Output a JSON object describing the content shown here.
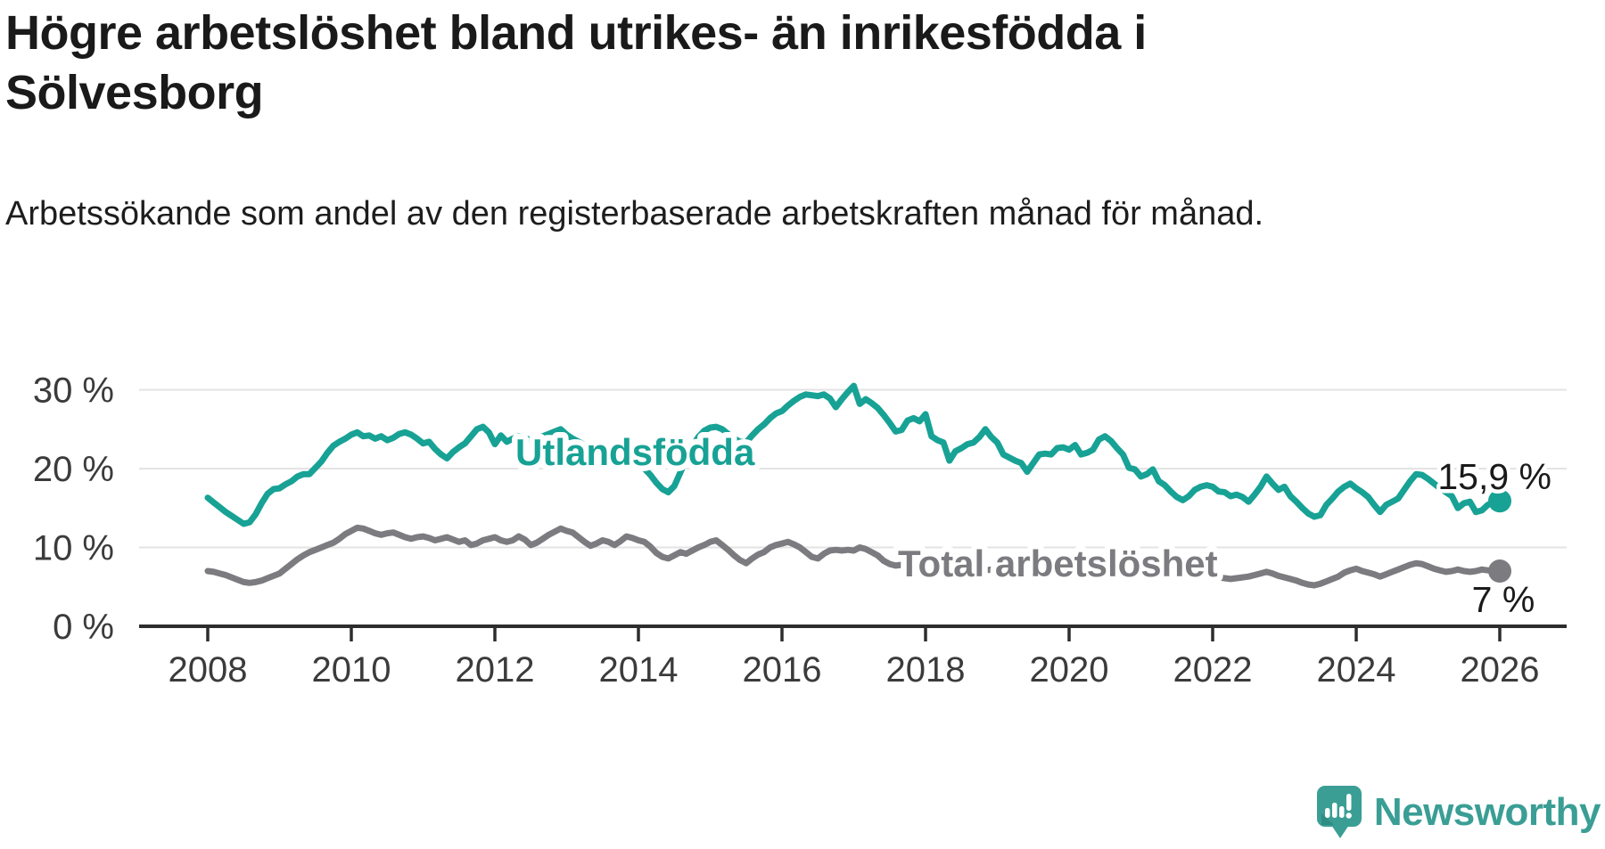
{
  "header": {
    "title": "Högre arbetslöshet bland utrikes- än inrikesfödda i Sölvesborg",
    "subtitle": "Arbetssökande som andel av den registerbaserade arbetskraften månad för månad."
  },
  "chart_data": {
    "type": "line",
    "title": "Högre arbetslöshet bland utrikes- än inrikesfödda i Sölvesborg",
    "subtitle": "Arbetssökande som andel av den registerbaserade arbetskraften månad för månad.",
    "unit": "%",
    "frequency": "monthly",
    "x_start": "2008-01",
    "x_end": "2026-01",
    "xlim": [
      2007.0,
      2026.95
    ],
    "ylim": [
      0,
      33
    ],
    "grid": "horizontal-only",
    "legend_position": "inline-labels-on-lines",
    "x_tick_labels": [
      "2008",
      "2010",
      "2012",
      "2014",
      "2016",
      "2018",
      "2020",
      "2022",
      "2024",
      "2026"
    ],
    "x_tick_years": [
      2008,
      2010,
      2012,
      2014,
      2016,
      2018,
      2020,
      2022,
      2024,
      2026
    ],
    "y_ticks": [
      {
        "value": 30,
        "label": "30 %",
        "gridline": true
      },
      {
        "value": 20,
        "label": "20 %",
        "gridline": true
      },
      {
        "value": 10,
        "label": "10 %",
        "gridline": true
      },
      {
        "value": 0,
        "label": "0 %",
        "gridline": false
      }
    ],
    "series": [
      {
        "name": "Utlandsfödda",
        "color": "#17A295",
        "end_value": 15.9,
        "end_label": "15,9 %",
        "values": [
          16.3,
          15.7,
          15.1,
          14.5,
          14.0,
          13.5,
          13.0,
          13.2,
          14.2,
          15.6,
          16.8,
          17.4,
          17.5,
          18.0,
          18.4,
          19.0,
          19.3,
          19.3,
          20.1,
          20.9,
          22.0,
          22.9,
          23.4,
          23.8,
          24.3,
          24.6,
          24.1,
          24.2,
          23.8,
          24.1,
          23.6,
          23.9,
          24.4,
          24.6,
          24.3,
          23.8,
          23.2,
          23.4,
          22.5,
          21.8,
          21.3,
          22.1,
          22.7,
          23.2,
          24.1,
          25.0,
          25.3,
          24.6,
          23.1,
          24.2,
          23.4,
          23.8,
          24.1,
          23.9,
          23.6,
          23.8,
          24.1,
          24.4,
          24.7,
          25.0,
          24.3,
          23.8,
          23.4,
          23.0,
          22.7,
          22.5,
          22.2,
          22.0,
          21.8,
          21.5,
          21.2,
          21.0,
          20.6,
          20.0,
          19.2,
          18.2,
          17.4,
          17.0,
          17.8,
          19.5,
          21.3,
          22.8,
          24.0,
          24.8,
          25.2,
          25.3,
          25.0,
          24.4,
          23.8,
          23.4,
          23.3,
          24.2,
          25.0,
          25.6,
          26.4,
          27.0,
          27.3,
          28.0,
          28.6,
          29.1,
          29.4,
          29.3,
          29.2,
          29.4,
          28.9,
          27.8,
          28.8,
          29.7,
          30.5,
          28.2,
          28.8,
          28.3,
          27.7,
          26.8,
          25.8,
          24.7,
          24.9,
          26.1,
          26.4,
          26.0,
          26.9,
          24.1,
          23.6,
          23.3,
          21.0,
          22.2,
          22.6,
          23.1,
          23.3,
          24.0,
          25.0,
          24.0,
          23.3,
          21.8,
          21.4,
          21.0,
          20.7,
          19.6,
          20.7,
          21.8,
          21.9,
          21.8,
          22.6,
          22.7,
          22.4,
          23.0,
          21.8,
          22.0,
          22.4,
          23.7,
          24.1,
          23.5,
          22.6,
          21.8,
          20.1,
          19.9,
          19.0,
          19.3,
          19.9,
          18.4,
          17.9,
          17.1,
          16.4,
          16.0,
          16.5,
          17.3,
          17.7,
          17.9,
          17.7,
          17.1,
          17.0,
          16.5,
          16.7,
          16.4,
          15.8,
          16.7,
          17.7,
          19.0,
          18.1,
          17.3,
          17.7,
          16.5,
          15.8,
          15.0,
          14.3,
          13.9,
          14.1,
          15.4,
          16.2,
          17.1,
          17.7,
          18.1,
          17.5,
          17.0,
          16.4,
          15.4,
          14.5,
          15.4,
          15.8,
          16.2,
          17.3,
          18.4,
          19.3,
          19.2,
          18.7,
          18.1,
          17.5,
          17.0,
          16.5,
          15.0,
          15.6,
          15.8,
          14.5,
          14.7,
          15.4,
          15.7,
          15.9
        ]
      },
      {
        "name": "Total arbetslöshet",
        "color": "#7B7B80",
        "end_value": 7.0,
        "end_label": "7 %",
        "values": [
          7.0,
          6.9,
          6.7,
          6.5,
          6.2,
          5.9,
          5.6,
          5.5,
          5.6,
          5.8,
          6.1,
          6.4,
          6.7,
          7.3,
          7.9,
          8.5,
          9.0,
          9.4,
          9.7,
          10.0,
          10.3,
          10.6,
          11.1,
          11.7,
          12.1,
          12.5,
          12.4,
          12.1,
          11.8,
          11.6,
          11.8,
          11.9,
          11.6,
          11.3,
          11.1,
          11.3,
          11.4,
          11.2,
          10.9,
          11.1,
          11.3,
          11.0,
          10.7,
          10.9,
          10.3,
          10.5,
          10.9,
          11.1,
          11.3,
          10.9,
          10.7,
          10.9,
          11.4,
          11.0,
          10.3,
          10.6,
          11.1,
          11.6,
          12.0,
          12.4,
          12.1,
          11.9,
          11.3,
          10.7,
          10.2,
          10.5,
          10.9,
          10.7,
          10.3,
          10.8,
          11.4,
          11.2,
          10.9,
          10.7,
          10.1,
          9.3,
          8.8,
          8.6,
          9.0,
          9.4,
          9.2,
          9.6,
          10.0,
          10.3,
          10.7,
          10.9,
          10.3,
          9.7,
          9.0,
          8.4,
          8.0,
          8.6,
          9.1,
          9.4,
          10.0,
          10.3,
          10.5,
          10.7,
          10.4,
          10.0,
          9.4,
          8.8,
          8.6,
          9.2,
          9.6,
          9.7,
          9.6,
          9.7,
          9.6,
          10.0,
          9.8,
          9.4,
          9.0,
          8.3,
          7.9,
          7.7,
          7.8,
          8.0,
          8.1,
          8.0,
          7.9,
          7.7,
          7.4,
          7.1,
          6.9,
          6.7,
          6.6,
          6.8,
          6.9,
          7.0,
          7.1,
          7.2,
          7.1,
          7.0,
          6.9,
          6.8,
          6.7,
          6.6,
          6.7,
          6.8,
          6.9,
          7.0,
          7.1,
          7.2,
          7.3,
          7.4,
          7.8,
          8.6,
          8.9,
          9.0,
          8.8,
          8.6,
          8.4,
          8.2,
          8.0,
          7.9,
          7.8,
          7.6,
          7.4,
          7.1,
          6.8,
          6.6,
          6.5,
          6.4,
          6.4,
          6.5,
          6.5,
          6.4,
          6.3,
          6.2,
          6.1,
          6.0,
          6.1,
          6.2,
          6.3,
          6.5,
          6.7,
          6.9,
          6.7,
          6.4,
          6.2,
          6.0,
          5.8,
          5.5,
          5.3,
          5.2,
          5.4,
          5.7,
          6.0,
          6.3,
          6.8,
          7.1,
          7.3,
          7.0,
          6.8,
          6.6,
          6.3,
          6.6,
          6.9,
          7.2,
          7.5,
          7.8,
          8.0,
          7.9,
          7.6,
          7.3,
          7.1,
          6.9,
          7.0,
          7.2,
          7.0,
          6.9,
          7.0,
          7.2,
          7.1,
          7.0,
          7.0
        ]
      }
    ]
  },
  "colors": {
    "background": "#ffffff",
    "axis": "#2D2D2D",
    "gridline": "#E3E3E3",
    "tick_text": "#3B3B3B",
    "value_label_text": "#1A1A1A",
    "series_teal": "#17A295",
    "series_gray": "#7B7B80",
    "brand_teal": "#3A9E95"
  },
  "branding": {
    "logo_text": "Newsworthy",
    "logo_icon": "speech-bubble-bar-chart-icon"
  }
}
